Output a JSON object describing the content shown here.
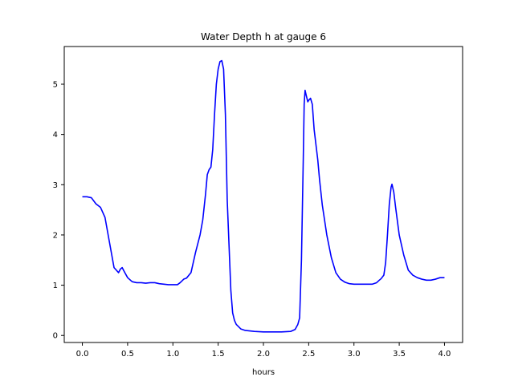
{
  "chart_data": {
    "type": "line",
    "title": "Water Depth h at gauge 6",
    "xlabel": "hours",
    "ylabel": "",
    "xlim": [
      -0.2,
      4.2
    ],
    "ylim": [
      -0.14,
      5.75
    ],
    "xticks": [
      0.0,
      0.5,
      1.0,
      1.5,
      2.0,
      2.5,
      3.0,
      3.5,
      4.0
    ],
    "xtick_labels": [
      "0.0",
      "0.5",
      "1.0",
      "1.5",
      "2.0",
      "2.5",
      "3.0",
      "3.5",
      "4.0"
    ],
    "yticks": [
      0,
      1,
      2,
      3,
      4,
      5
    ],
    "ytick_labels": [
      "0",
      "1",
      "2",
      "3",
      "4",
      "5"
    ],
    "grid": false,
    "legend": "none",
    "series": [
      {
        "color": "#0000ff",
        "x": [
          0.0,
          0.05,
          0.1,
          0.15,
          0.2,
          0.25,
          0.3,
          0.35,
          0.4,
          0.42,
          0.44,
          0.46,
          0.5,
          0.55,
          0.6,
          0.65,
          0.7,
          0.75,
          0.8,
          0.85,
          0.9,
          0.95,
          1.0,
          1.05,
          1.08,
          1.12,
          1.15,
          1.2,
          1.25,
          1.3,
          1.33,
          1.36,
          1.38,
          1.4,
          1.42,
          1.44,
          1.46,
          1.48,
          1.5,
          1.52,
          1.54,
          1.56,
          1.58,
          1.6,
          1.62,
          1.64,
          1.66,
          1.68,
          1.7,
          1.75,
          1.8,
          1.9,
          2.0,
          2.1,
          2.2,
          2.3,
          2.35,
          2.38,
          2.4,
          2.42,
          2.44,
          2.45,
          2.46,
          2.47,
          2.49,
          2.5,
          2.52,
          2.54,
          2.56,
          2.58,
          2.6,
          2.62,
          2.65,
          2.7,
          2.75,
          2.8,
          2.85,
          2.9,
          2.95,
          3.0,
          3.05,
          3.1,
          3.15,
          3.2,
          3.25,
          3.28,
          3.3,
          3.33,
          3.35,
          3.37,
          3.39,
          3.41,
          3.42,
          3.44,
          3.46,
          3.5,
          3.55,
          3.6,
          3.65,
          3.7,
          3.75,
          3.8,
          3.85,
          3.9,
          3.95,
          4.0
        ],
        "values": [
          2.76,
          2.76,
          2.74,
          2.62,
          2.55,
          2.35,
          1.85,
          1.35,
          1.25,
          1.32,
          1.35,
          1.28,
          1.15,
          1.07,
          1.05,
          1.05,
          1.04,
          1.05,
          1.05,
          1.03,
          1.02,
          1.01,
          1.01,
          1.01,
          1.05,
          1.12,
          1.14,
          1.25,
          1.65,
          2.0,
          2.3,
          2.8,
          3.2,
          3.3,
          3.35,
          3.7,
          4.4,
          5.0,
          5.3,
          5.45,
          5.47,
          5.3,
          4.4,
          2.7,
          1.8,
          0.9,
          0.45,
          0.3,
          0.22,
          0.13,
          0.1,
          0.08,
          0.07,
          0.07,
          0.07,
          0.08,
          0.12,
          0.22,
          0.35,
          1.5,
          3.5,
          4.6,
          4.88,
          4.8,
          4.65,
          4.68,
          4.72,
          4.6,
          4.1,
          3.8,
          3.5,
          3.1,
          2.6,
          2.0,
          1.55,
          1.25,
          1.12,
          1.06,
          1.03,
          1.02,
          1.02,
          1.02,
          1.02,
          1.02,
          1.05,
          1.1,
          1.13,
          1.2,
          1.45,
          2.0,
          2.6,
          2.95,
          3.01,
          2.85,
          2.55,
          2.0,
          1.6,
          1.3,
          1.2,
          1.15,
          1.12,
          1.1,
          1.1,
          1.12,
          1.15,
          1.15
        ]
      }
    ]
  }
}
